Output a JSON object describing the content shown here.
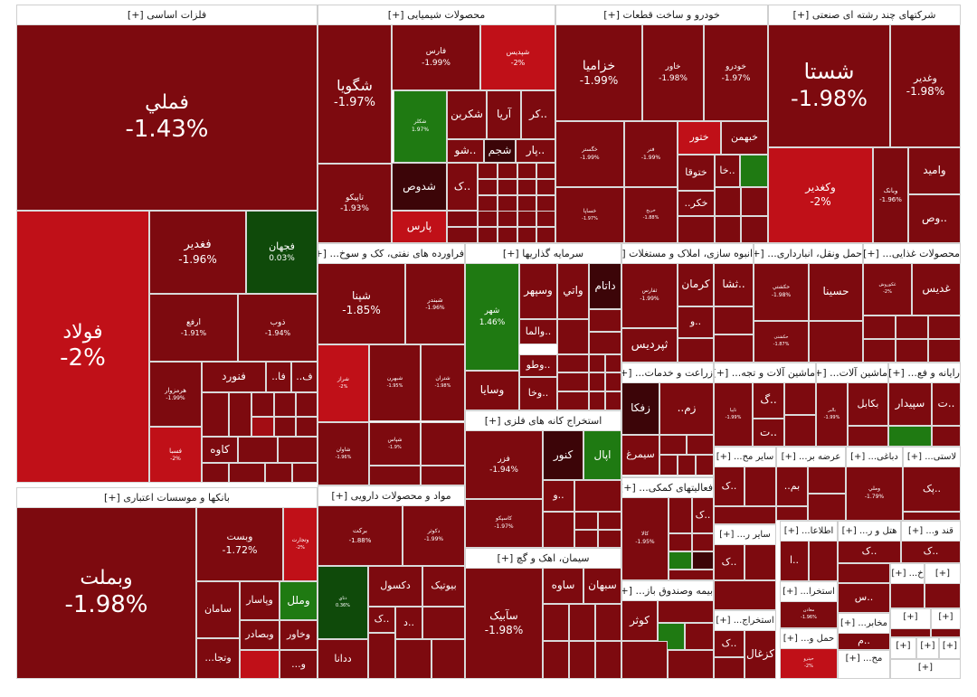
{
  "colors": {
    "dark_red": "#7d0a0f",
    "red": "#a30d14",
    "bright_red": "#c01018",
    "very_dark": "#3c0508",
    "green": "#1f7a12",
    "dark_green": "#0f4a0a",
    "header_bg": "#ffffff",
    "background": "#ffffff"
  },
  "chart_data": {
    "type": "treemap",
    "metric": "percent change",
    "sectors": [
      {
        "name": "فلزات اساسی [+]",
        "tiles": [
          {
            "symbol": "فملي",
            "change": "-1.43%",
            "value": -1.43
          },
          {
            "symbol": "فولاد",
            "change": "-2%",
            "value": -2
          },
          {
            "symbol": "فغدير",
            "change": "-1.96%",
            "value": -1.96
          },
          {
            "symbol": "فجهان",
            "change": "0.03%",
            "value": 0.03
          },
          {
            "symbol": "ارفع",
            "change": "-1.91%",
            "value": -1.91
          },
          {
            "symbol": "ذوب",
            "change": "-1.94%",
            "value": -1.94
          },
          {
            "symbol": "هرمزوار",
            "change": "-1.99%",
            "value": -1.99
          },
          {
            "symbol": "فنورد",
            "change": "",
            "value": null
          },
          {
            "symbol": "فا..",
            "change": "",
            "value": null
          },
          {
            "symbol": "ف..",
            "change": "",
            "value": null
          },
          {
            "symbol": "فسبا",
            "change": "-2%",
            "value": -2
          },
          {
            "symbol": "کاوه",
            "change": "",
            "value": null
          }
        ]
      },
      {
        "name": "بانکها و موسسات اعتباری [+]",
        "tiles": [
          {
            "symbol": "وبملت",
            "change": "-1.98%",
            "value": -1.98
          },
          {
            "symbol": "وبست",
            "change": "-1.72%",
            "value": -1.72
          },
          {
            "symbol": "وتجارت",
            "change": "-2%",
            "value": -2
          },
          {
            "symbol": "سامان",
            "change": "",
            "value": null
          },
          {
            "symbol": "وپاسار",
            "change": "",
            "value": null
          },
          {
            "symbol": "وملل",
            "change": "",
            "value": null
          },
          {
            "symbol": "وبصادر",
            "change": "",
            "value": null
          },
          {
            "symbol": "وخاور",
            "change": "",
            "value": null
          },
          {
            "symbol": "وتجا...",
            "change": "",
            "value": null
          },
          {
            "symbol": "و...",
            "change": "",
            "value": null
          }
        ]
      },
      {
        "name": "محصولات شیمیایی [+]",
        "tiles": [
          {
            "symbol": "شگويا",
            "change": "-1.97%",
            "value": -1.97
          },
          {
            "symbol": "فارس",
            "change": "-1.99%",
            "value": -1.99
          },
          {
            "symbol": "شپدیس",
            "change": "-2%",
            "value": -2
          },
          {
            "symbol": "تاپیکو",
            "change": "-1.93%",
            "value": -1.93
          },
          {
            "symbol": "شکلر",
            "change": "1.97%",
            "value": 1.97
          },
          {
            "symbol": "شکربن",
            "change": "",
            "value": null
          },
          {
            "symbol": "آريا",
            "change": "",
            "value": null
          },
          {
            "symbol": "..کر",
            "change": "",
            "value": null
          },
          {
            "symbol": "..شو",
            "change": "",
            "value": null
          },
          {
            "symbol": "شجم",
            "change": "",
            "value": null
          },
          {
            "symbol": "..پار",
            "change": "",
            "value": null
          },
          {
            "symbol": "شدوص",
            "change": "",
            "value": null
          },
          {
            "symbol": "..ک",
            "change": "",
            "value": null
          },
          {
            "symbol": "پارس",
            "change": "",
            "value": null
          }
        ]
      },
      {
        "name": "خودرو و ساخت قطعات [+]",
        "tiles": [
          {
            "symbol": "خزاميا",
            "change": "-1.99%",
            "value": -1.99
          },
          {
            "symbol": "خاور",
            "change": "-1.98%",
            "value": -1.98
          },
          {
            "symbol": "خودرو",
            "change": "-1.97%",
            "value": -1.97
          },
          {
            "symbol": "خگستر",
            "change": "-1.99%",
            "value": -1.99
          },
          {
            "symbol": "فنر",
            "change": "-1.99%",
            "value": -1.99
          },
          {
            "symbol": "ختور",
            "change": "",
            "value": null
          },
          {
            "symbol": "خبهمن",
            "change": "",
            "value": null
          },
          {
            "symbol": "ختوقا",
            "change": "",
            "value": null
          },
          {
            "symbol": "..خا",
            "change": "",
            "value": null
          },
          {
            "symbol": "خکر..",
            "change": "",
            "value": null
          },
          {
            "symbol": "خساپا",
            "change": "-1.97%",
            "value": -1.97
          },
          {
            "symbol": "خریخ",
            "change": "-1.88%",
            "value": -1.88
          }
        ]
      },
      {
        "name": "شرکتهای چند رشته ای صنعتی [+]",
        "tiles": [
          {
            "symbol": "شستا",
            "change": "-1.98%",
            "value": -1.98
          },
          {
            "symbol": "وغدير",
            "change": "-1.98%",
            "value": -1.98
          },
          {
            "symbol": "وكغدير",
            "change": "-2%",
            "value": -2
          },
          {
            "symbol": "وبانک",
            "change": "-1.96%",
            "value": -1.96
          },
          {
            "symbol": "واميد",
            "change": "",
            "value": null
          },
          {
            "symbol": "..وص",
            "change": "",
            "value": null
          }
        ]
      },
      {
        "name": "فراورده های نفتی، کک و سوخ... [+]",
        "tiles": [
          {
            "symbol": "شپنا",
            "change": "-1.85%",
            "value": -1.85
          },
          {
            "symbol": "شبندر",
            "change": "-1.96%",
            "value": -1.96
          },
          {
            "symbol": "شراز",
            "change": "-2%",
            "value": -2
          },
          {
            "symbol": "شبهرن",
            "change": "-1.95%",
            "value": -1.95
          },
          {
            "symbol": "شتران",
            "change": "-1.98%",
            "value": -1.98
          },
          {
            "symbol": "شاوان",
            "change": "-1.96%",
            "value": -1.96
          },
          {
            "symbol": "شپاس",
            "change": "-1.9%",
            "value": -1.9
          }
        ]
      },
      {
        "name": "سرمایه گذاریها [+]",
        "tiles": [
          {
            "symbol": "شهر",
            "change": "1.46%",
            "value": 1.46
          },
          {
            "symbol": "وسپهر",
            "change": "",
            "value": null
          },
          {
            "symbol": "واتي",
            "change": "",
            "value": null
          },
          {
            "symbol": "داتام",
            "change": "",
            "value": null
          },
          {
            "symbol": "..والما",
            "change": "",
            "value": null
          },
          {
            "symbol": "..وطو",
            "change": "",
            "value": null
          },
          {
            "symbol": "..وخا",
            "change": "",
            "value": null
          },
          {
            "symbol": "وسايا",
            "change": "",
            "value": null
          }
        ]
      },
      {
        "name": "انبوه سازی، املاک و مستغلات [+]",
        "tiles": [
          {
            "symbol": "ثفارس",
            "change": "-1.99%",
            "value": -1.99
          },
          {
            "symbol": "كرمان",
            "change": "",
            "value": null
          },
          {
            "symbol": "..ثشا",
            "change": "",
            "value": null
          },
          {
            "symbol": "..و",
            "change": "",
            "value": null
          },
          {
            "symbol": "ثپرديس",
            "change": "",
            "value": null
          }
        ]
      },
      {
        "name": "حمل ونقل، انبارداری... [+]",
        "tiles": [
          {
            "symbol": "حكشتي",
            "change": "-1.98%",
            "value": -1.98
          },
          {
            "symbol": "حسينا",
            "change": "",
            "value": null
          },
          {
            "symbol": "حکشتی",
            "change": "-1.87%",
            "value": -1.87
          }
        ]
      },
      {
        "name": "محصولات غذایی... [+]",
        "tiles": [
          {
            "symbol": "غدیس",
            "change": "",
            "value": null
          },
          {
            "symbol": "غكوروش",
            "change": "-2%",
            "value": -2
          }
        ]
      },
      {
        "name": "زراعت و خدمات... [+]",
        "tiles": [
          {
            "symbol": "زفكا",
            "change": "",
            "value": null
          },
          {
            "symbol": "زم..",
            "change": "",
            "value": null
          },
          {
            "symbol": "سيمرغ",
            "change": "",
            "value": null
          }
        ]
      },
      {
        "name": "ماشین آلات و تجه... [+]",
        "tiles": [
          {
            "symbol": "تاپیا",
            "change": "-1.99%",
            "value": -1.99
          },
          {
            "symbol": "..گ",
            "change": "",
            "value": null
          },
          {
            "symbol": "..ت",
            "change": "",
            "value": null
          }
        ]
      },
      {
        "name": "ماشین آلات... [+]",
        "tiles": [
          {
            "symbol": "بكابل",
            "change": "",
            "value": null
          },
          {
            "symbol": "بالبر",
            "change": "-1.99%",
            "value": -1.99
          }
        ]
      },
      {
        "name": "رایانه و فع... [+]",
        "tiles": [
          {
            "symbol": "سپيدار",
            "change": "",
            "value": null
          },
          {
            "symbol": "..ت",
            "change": "",
            "value": null
          }
        ]
      },
      {
        "name": "استخراج کانه های فلزی [+]",
        "tiles": [
          {
            "symbol": "فزر",
            "change": "-1.94%",
            "value": -1.94
          },
          {
            "symbol": "كنور",
            "change": "",
            "value": null
          },
          {
            "symbol": "اپال",
            "change": "",
            "value": null
          },
          {
            "symbol": "كاسپكو",
            "change": "-1.97%",
            "value": -1.97
          },
          {
            "symbol": "..و",
            "change": "",
            "value": null
          }
        ]
      },
      {
        "name": "مواد و محصولات دارویی [+]",
        "tiles": [
          {
            "symbol": "بركت",
            "change": "-1.88%",
            "value": -1.88
          },
          {
            "symbol": "دكوثر",
            "change": "-1.99%",
            "value": -1.99
          },
          {
            "symbol": "دتاي",
            "change": "0.36%",
            "value": 0.36
          },
          {
            "symbol": "دكسول",
            "change": "",
            "value": null
          },
          {
            "symbol": "بيوتيک",
            "change": "",
            "value": null
          },
          {
            "symbol": "..د",
            "change": "",
            "value": null
          },
          {
            "symbol": "..ک",
            "change": "",
            "value": null
          },
          {
            "symbol": "ددانا",
            "change": "",
            "value": null
          }
        ]
      },
      {
        "name": "سیمان، اهک و گچ [+]",
        "tiles": [
          {
            "symbol": "سآبيک",
            "change": "-1.98%",
            "value": -1.98
          },
          {
            "symbol": "ساوه",
            "change": "",
            "value": null
          },
          {
            "symbol": "سبهان",
            "change": "",
            "value": null
          }
        ]
      },
      {
        "name": "فعالیتهای کمکی... [+]",
        "tiles": [
          {
            "symbol": "كالا",
            "change": "-1.95%",
            "value": -1.95
          },
          {
            "symbol": "..ک",
            "change": "",
            "value": null
          }
        ]
      },
      {
        "name": "بیمه وصندوق باز... [+]",
        "tiles": [
          {
            "symbol": "كوثر",
            "change": "",
            "value": null
          }
        ]
      },
      {
        "name": "سایر مح... [+]",
        "tiles": [
          {
            "symbol": "..ک",
            "change": "",
            "value": null
          }
        ]
      },
      {
        "name": "سایر ر... [+]",
        "tiles": [
          {
            "symbol": "..ک",
            "change": "",
            "value": null
          }
        ]
      },
      {
        "name": "استخراج... [+]",
        "tiles": [
          {
            "symbol": "كزغال",
            "change": "",
            "value": null
          },
          {
            "symbol": "..ک",
            "change": "",
            "value": null
          }
        ]
      },
      {
        "name": "عرضه بر... [+]",
        "tiles": [
          {
            "symbol": "بم..",
            "change": "",
            "value": null
          }
        ]
      },
      {
        "name": "دباغی... [+]",
        "tiles": [
          {
            "symbol": "وملي",
            "change": "-1.79%",
            "value": -1.79
          }
        ]
      },
      {
        "name": "لاستی... [+]",
        "tiles": [
          {
            "symbol": "..پک",
            "change": "",
            "value": null
          }
        ]
      },
      {
        "name": "اطلاعا... [+]",
        "tiles": [
          {
            "symbol": "..ا",
            "change": "",
            "value": null
          }
        ]
      },
      {
        "name": "هتل و ر... [+]",
        "tiles": [
          {
            "symbol": "..ک",
            "change": "",
            "value": null
          }
        ]
      },
      {
        "name": "قند و... [+]",
        "tiles": [
          {
            "symbol": "..ک",
            "change": "",
            "value": null
          }
        ]
      },
      {
        "name": "استخرا... [+]",
        "tiles": [
          {
            "symbol": "معادن",
            "change": "-1.96%",
            "value": -1.96
          }
        ]
      },
      {
        "name": "ساخ... [+]",
        "tiles": [
          {
            "symbol": "..س",
            "change": "",
            "value": null
          }
        ]
      },
      {
        "name": "حمل و... [+]",
        "tiles": [
          {
            "symbol": "حپترو",
            "change": "-2%",
            "value": -2
          }
        ]
      },
      {
        "name": "مخابر... [+]",
        "tiles": [
          {
            "symbol": "..م",
            "change": "",
            "value": null
          }
        ]
      },
      {
        "name": "مح... [+]",
        "tiles": []
      },
      {
        "name": "خ... [+]",
        "tiles": []
      },
      {
        "name": "[+]",
        "tiles": []
      },
      {
        "name": "[+]",
        "tiles": []
      },
      {
        "name": "[+]",
        "tiles": []
      },
      {
        "name": "[+]",
        "tiles": []
      },
      {
        "name": "[+]",
        "tiles": []
      },
      {
        "name": "[+]",
        "tiles": []
      },
      {
        "name": "[+]",
        "tiles": []
      }
    ]
  }
}
